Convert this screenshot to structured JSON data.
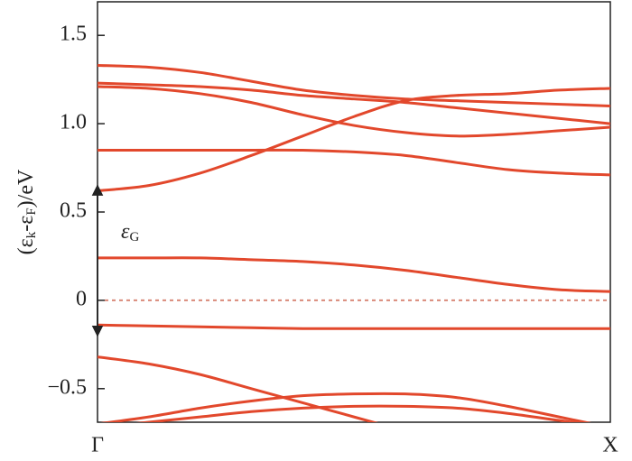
{
  "chart_data": {
    "type": "line",
    "x": [
      0,
      0.1,
      0.2,
      0.3,
      0.4,
      0.5,
      0.6,
      0.7,
      0.8,
      0.9,
      1.0
    ],
    "series": [
      {
        "color": "#e2482c",
        "values": [
          1.33,
          1.32,
          1.29,
          1.24,
          1.19,
          1.16,
          1.14,
          1.13,
          1.12,
          1.11,
          1.1
        ]
      },
      {
        "color": "#e2482c",
        "values": [
          1.23,
          1.22,
          1.21,
          1.19,
          1.16,
          1.14,
          1.12,
          1.09,
          1.06,
          1.03,
          1.0
        ]
      },
      {
        "color": "#e2482c",
        "values": [
          1.21,
          1.2,
          1.17,
          1.12,
          1.05,
          0.99,
          0.95,
          0.93,
          0.94,
          0.96,
          0.98
        ]
      },
      {
        "color": "#e2482c",
        "values": [
          0.85,
          0.85,
          0.85,
          0.85,
          0.85,
          0.84,
          0.82,
          0.78,
          0.74,
          0.72,
          0.71
        ]
      },
      {
        "color": "#e2482c",
        "values": [
          0.62,
          0.65,
          0.72,
          0.82,
          0.93,
          1.04,
          1.13,
          1.16,
          1.17,
          1.19,
          1.2
        ]
      },
      {
        "color": "#e2482c",
        "values": [
          0.24,
          0.24,
          0.24,
          0.23,
          0.22,
          0.2,
          0.17,
          0.13,
          0.09,
          0.06,
          0.05
        ]
      },
      {
        "color": "#e2482c",
        "values": [
          -0.14,
          -0.145,
          -0.15,
          -0.155,
          -0.16,
          -0.16,
          -0.16,
          -0.16,
          -0.16,
          -0.16,
          -0.16
        ]
      },
      {
        "color": "#e2482c",
        "values": [
          -0.32,
          -0.36,
          -0.42,
          -0.5,
          -0.58,
          -0.66,
          -0.74,
          null,
          null,
          null,
          null
        ]
      },
      {
        "color": "#e2482c",
        "values": [
          -0.7,
          -0.66,
          -0.61,
          -0.57,
          -0.54,
          -0.53,
          -0.53,
          -0.55,
          -0.6,
          -0.66,
          -0.72
        ]
      },
      {
        "color": "#e2482c",
        "values": [
          -0.72,
          -0.69,
          -0.66,
          -0.63,
          -0.61,
          -0.6,
          -0.6,
          -0.61,
          -0.64,
          -0.68,
          -0.72
        ]
      }
    ],
    "xlim": [
      0,
      1
    ],
    "xticks": [
      {
        "value": 0,
        "label": "Γ"
      },
      {
        "value": 1,
        "label": "X"
      }
    ],
    "ylim": [
      -0.69,
      1.69
    ],
    "yticks": [
      {
        "value": -0.5,
        "label": "−0.5"
      },
      0,
      0.5,
      {
        "value": 1.0,
        "label": "1.0"
      },
      1.5
    ],
    "ylabel": [
      "(ε",
      "k",
      "-ε",
      "F",
      ")/eV"
    ],
    "reference_line": 0,
    "gap": {
      "symbol": "ε",
      "subscript": "G",
      "from": -0.15,
      "to": 0.62
    }
  }
}
